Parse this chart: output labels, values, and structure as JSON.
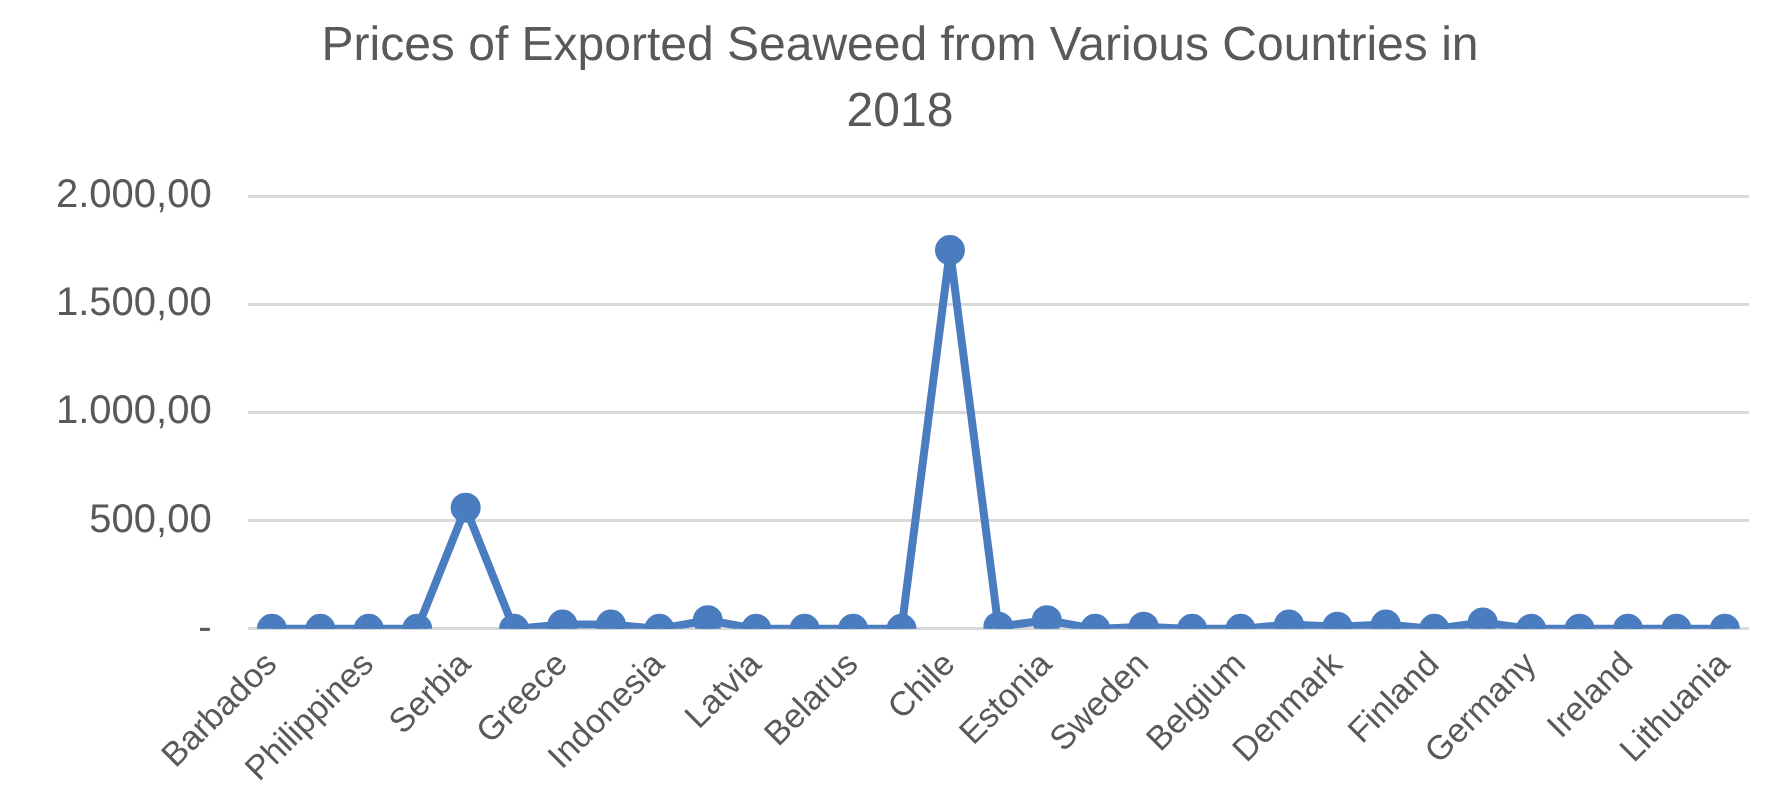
{
  "chart_data": {
    "type": "line",
    "title": "Prices of Exported Seaweed from Various Countries in 2018",
    "categories": [
      "Barbados",
      null,
      "Philippines",
      null,
      "Serbia",
      null,
      "Greece",
      null,
      "Indonesia",
      null,
      "Latvia",
      null,
      "Belarus",
      null,
      "Chile",
      null,
      "Estonia",
      null,
      "Sweden",
      null,
      "Belgium",
      null,
      "Denmark",
      null,
      "Finland",
      null,
      "Germany",
      null,
      "Ireland",
      null,
      "Lithuania"
    ],
    "series": [
      {
        "color": "#4a7cc0",
        "values": [
          0,
          0,
          0,
          0,
          560,
          0,
          20,
          20,
          0,
          40,
          0,
          0,
          0,
          0,
          1750,
          10,
          40,
          0,
          10,
          0,
          0,
          20,
          10,
          20,
          0,
          30,
          0,
          0,
          0,
          0,
          0
        ]
      }
    ],
    "ylim": [
      0,
      2000
    ],
    "yticks": [
      {
        "value": 0,
        "label": "-"
      },
      {
        "value": 500,
        "label": "500,00"
      },
      {
        "value": 1000,
        "label": "1.000,00"
      },
      {
        "value": 1500,
        "label": "1.500,00"
      },
      {
        "value": 2000,
        "label": "2.000,00"
      }
    ],
    "grid": "y",
    "legend": false,
    "marker": "circle",
    "line_style": "solid"
  }
}
